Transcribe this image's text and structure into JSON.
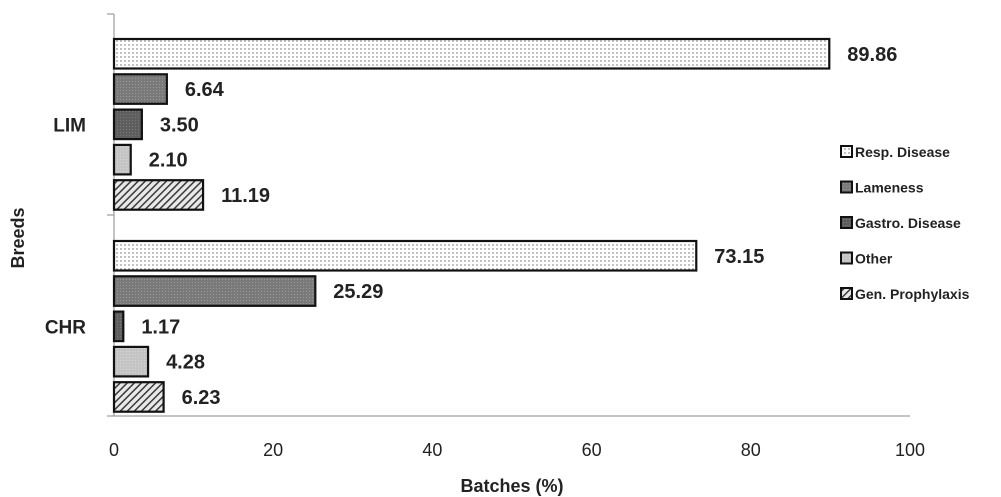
{
  "chart_data": {
    "type": "bar",
    "orientation": "horizontal",
    "categories": [
      "LIM",
      "CHR"
    ],
    "series": [
      {
        "name": "Resp. Disease",
        "values": [
          89.86,
          73.15
        ],
        "value_labels": [
          "89.86",
          "73.15"
        ],
        "pattern": "dots"
      },
      {
        "name": "Lameness",
        "values": [
          6.64,
          25.29
        ],
        "value_labels": [
          "6.64",
          "25.29"
        ],
        "pattern": "grid-mid"
      },
      {
        "name": "Gastro. Disease",
        "values": [
          3.5,
          1.17
        ],
        "value_labels": [
          "3.50",
          "1.17"
        ],
        "pattern": "grid-dark"
      },
      {
        "name": "Other",
        "values": [
          2.1,
          4.28
        ],
        "value_labels": [
          "2.10",
          "4.28"
        ],
        "pattern": "light-grey"
      },
      {
        "name": "Gen. Prophylaxis",
        "values": [
          11.19,
          6.23
        ],
        "value_labels": [
          "11.19",
          "6.23"
        ],
        "pattern": "diagonal-hatch"
      }
    ],
    "xlabel": "Batches (%)",
    "ylabel": "Breeds",
    "xlim": [
      0,
      100
    ],
    "xticks": [
      "0",
      "20",
      "40",
      "60",
      "80",
      "100"
    ],
    "grid": false,
    "legend_position": "right"
  }
}
